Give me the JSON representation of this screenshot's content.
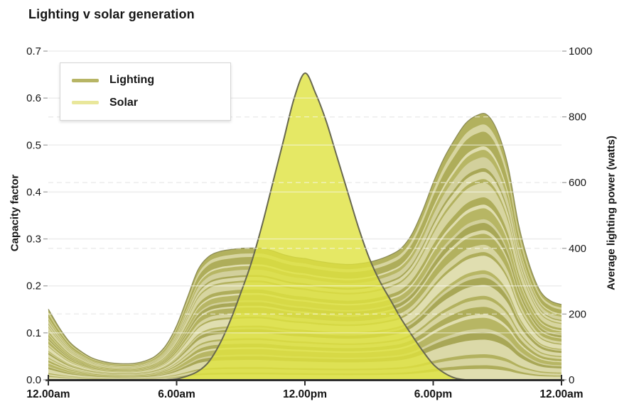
{
  "title": "Lighting v solar generation",
  "legend": {
    "items": [
      {
        "label": "Lighting",
        "color": "#b7b565"
      },
      {
        "label": "Solar",
        "color": "#e9e79b"
      }
    ]
  },
  "chart_data": {
    "type": "area",
    "description": "Stacked strand area (Lighting, right axis watts) overlaid by translucent solar capacity-factor curve (left axis), over 24 hours.",
    "x_hours": [
      0,
      0.5,
      1,
      1.5,
      2,
      2.5,
      3,
      3.5,
      4,
      4.5,
      5,
      5.5,
      6,
      6.5,
      7,
      7.5,
      8,
      8.5,
      9,
      9.5,
      10,
      10.5,
      11,
      11.5,
      12,
      12.5,
      13,
      13.5,
      14,
      14.5,
      15,
      15.5,
      16,
      16.5,
      17,
      17.5,
      18,
      18.5,
      19,
      19.5,
      20,
      20.5,
      21,
      21.5,
      22,
      22.5,
      23,
      23.5,
      24
    ],
    "x_tick_hours": [
      0,
      6,
      12,
      18,
      24
    ],
    "x_tick_labels": [
      "12.00am",
      "6.00am",
      "12.00pm",
      "6.00pm",
      "12.00am"
    ],
    "left_axis": {
      "label": "Capacity factor",
      "min": 0,
      "max": 0.7,
      "ticks": [
        0.0,
        0.1,
        0.2,
        0.3,
        0.4,
        0.5,
        0.6,
        0.7
      ],
      "tick_labels": [
        "0.0",
        "0.1",
        "0.2",
        "0.3",
        "0.4",
        "0.5",
        "0.6",
        "0.7"
      ]
    },
    "right_axis": {
      "label": "Average lighting power (watts)",
      "min": 0,
      "max": 1000,
      "ticks": [
        0,
        200,
        400,
        600,
        800,
        1000
      ],
      "tick_labels": [
        "0",
        "200",
        "400",
        "600",
        "800",
        "1000"
      ],
      "dashed_grid_ticks": [
        200,
        400,
        600,
        800
      ]
    },
    "series": [
      {
        "name": "Lighting",
        "axis": "right",
        "unit": "watts",
        "style": "stacked-strands",
        "values": [
          215,
          160,
          115,
          88,
          68,
          57,
          51,
          49,
          50,
          57,
          72,
          105,
          165,
          250,
          335,
          375,
          390,
          396,
          400,
          401,
          400,
          392,
          381,
          373,
          369,
          362,
          357,
          353,
          351,
          353,
          358,
          367,
          380,
          400,
          443,
          514,
          600,
          674,
          731,
          779,
          803,
          807,
          757,
          650,
          471,
          350,
          271,
          240,
          229
        ]
      },
      {
        "name": "Solar",
        "axis": "left",
        "unit": "capacity_factor",
        "style": "outlined-area",
        "values": [
          0,
          0,
          0,
          0,
          0,
          0,
          0,
          0,
          0,
          0,
          0,
          0,
          0.002,
          0.008,
          0.018,
          0.038,
          0.075,
          0.125,
          0.185,
          0.25,
          0.33,
          0.42,
          0.51,
          0.6,
          0.653,
          0.61,
          0.55,
          0.475,
          0.4,
          0.325,
          0.26,
          0.21,
          0.17,
          0.13,
          0.095,
          0.062,
          0.033,
          0.015,
          0.004,
          0,
          0,
          0,
          0,
          0,
          0,
          0,
          0,
          0,
          0
        ]
      }
    ],
    "colors": {
      "solar_fill": "#dfe23e",
      "solar_outline": "#68684f",
      "lighting_outline": "#82824d",
      "strand_palette": [
        "#e0deb0",
        "#aead5a",
        "#d7d5a0",
        "#b2b15e",
        "#dbd9a8",
        "#a8a756",
        "#d2d09c",
        "#b7b664"
      ],
      "grid_solid": "#d8d8d8",
      "grid_dashed": "#d0d0d0",
      "axis_line": "#2e2e2e",
      "text": "#151515"
    },
    "legend_position": "top-left-inside",
    "grid": {
      "solid_at_left_ticks": true,
      "dashed_at_right_ticks": true
    }
  }
}
